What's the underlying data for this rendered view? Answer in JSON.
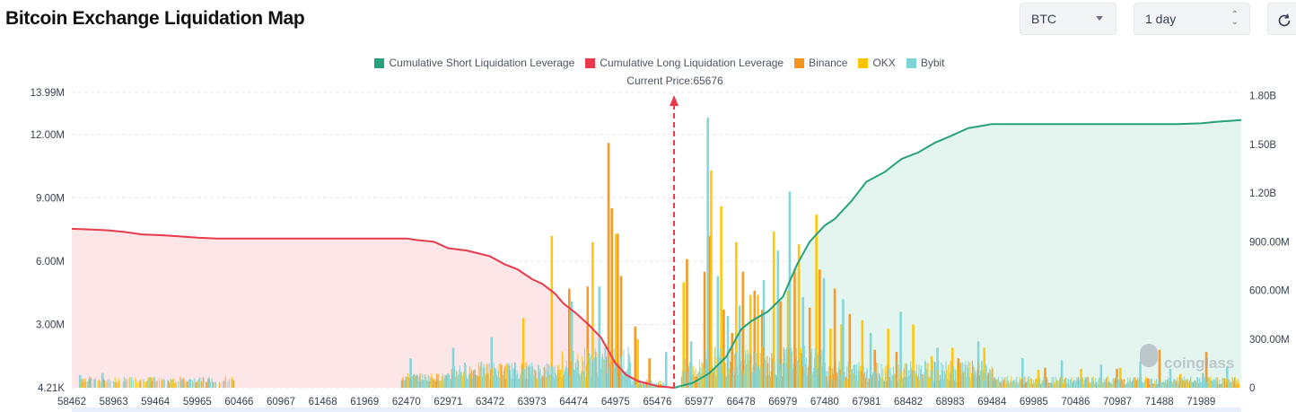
{
  "header": {
    "title": "Bitcoin Exchange Liquidation Map",
    "coin_select": "BTC",
    "range_select": "1 day"
  },
  "legend": [
    {
      "label": "Cumulative Short Liquidation Leverage",
      "color": "#26a17b"
    },
    {
      "label": "Cumulative Long Liquidation Leverage",
      "color": "#e83a4a"
    },
    {
      "label": "Binance",
      "color": "#f7931a"
    },
    {
      "label": "OKX",
      "color": "#ffc400"
    },
    {
      "label": "Bybit",
      "color": "#7ed4d6"
    }
  ],
  "current_price_label": "Current Price:65676",
  "watermark": "coinglass",
  "chart_data": {
    "type": "bar",
    "current_price": 65676,
    "x_range": [
      58462,
      72470
    ],
    "x_ticks": [
      "58462",
      "58963",
      "59464",
      "59965",
      "60466",
      "60967",
      "61468",
      "61969",
      "62470",
      "62971",
      "63472",
      "63973",
      "64474",
      "64975",
      "65476",
      "65977",
      "66478",
      "66979",
      "67480",
      "67981",
      "68482",
      "68983",
      "69484",
      "69985",
      "70486",
      "70987",
      "71488",
      "71989"
    ],
    "y_left_ticks": [
      "4.21K",
      "3.00M",
      "6.00M",
      "9.00M",
      "12.00M",
      "13.99M"
    ],
    "y_left_values": [
      4210,
      3000000,
      6000000,
      9000000,
      12000000,
      13990000
    ],
    "y_left_range": [
      4210,
      13990000
    ],
    "y_right_ticks": [
      "0",
      "300.00M",
      "600.00M",
      "900.00M",
      "1.20B",
      "1.50B",
      "1.80B"
    ],
    "y_right_values": [
      0,
      300000000,
      600000000,
      900000000,
      1200000000,
      1500000000,
      1800000000
    ],
    "y_right_range": [
      0,
      1820000000
    ],
    "cumulative_long": {
      "name": "Cumulative Long Liquidation Leverage",
      "x": [
        58462,
        58700,
        58900,
        59100,
        59300,
        59550,
        59700,
        59965,
        60200,
        60466,
        61000,
        61500,
        62000,
        62470,
        62600,
        62800,
        62971,
        63200,
        63472,
        63650,
        63800,
        63973,
        64100,
        64250,
        64350,
        64500,
        64650,
        64800,
        64975,
        65100,
        65250,
        65476,
        65676
      ],
      "y": [
        980000000,
        975000000,
        970000000,
        960000000,
        945000000,
        940000000,
        935000000,
        925000000,
        920000000,
        920000000,
        920000000,
        920000000,
        920000000,
        920000000,
        910000000,
        900000000,
        860000000,
        845000000,
        810000000,
        760000000,
        730000000,
        670000000,
        640000000,
        580000000,
        520000000,
        460000000,
        390000000,
        310000000,
        150000000,
        80000000,
        40000000,
        10000000,
        0
      ]
    },
    "cumulative_short": {
      "name": "Cumulative Short Liquidation Leverage",
      "x": [
        65676,
        65900,
        66100,
        66300,
        66478,
        66600,
        66800,
        66979,
        67150,
        67300,
        67480,
        67600,
        67800,
        67981,
        68200,
        68400,
        68600,
        68800,
        68983,
        69200,
        69484,
        70000,
        70500,
        71000,
        71488,
        71700,
        71989,
        72200,
        72470
      ],
      "y": [
        0,
        30000000,
        90000000,
        190000000,
        360000000,
        410000000,
        470000000,
        560000000,
        760000000,
        900000000,
        1000000000,
        1040000000,
        1150000000,
        1270000000,
        1330000000,
        1410000000,
        1450000000,
        1510000000,
        1550000000,
        1600000000,
        1625000000,
        1625000000,
        1625000000,
        1625000000,
        1625000000,
        1625000000,
        1630000000,
        1640000000,
        1650000000
      ]
    },
    "bars": {
      "note": "individual liquidation leverage by price level (left axis)",
      "series": [
        {
          "name": "Binance",
          "x": [
            64420,
            64640,
            64890,
            64930,
            65000,
            65040,
            65210,
            65380,
            65830,
            66040,
            66100,
            66270,
            66370,
            66500,
            66640,
            66730,
            66950,
            67120,
            67300,
            67420,
            67600,
            67780,
            68080,
            68340,
            69080,
            70120,
            70980,
            71490,
            72050
          ],
          "values": [
            4700000,
            4800000,
            11600000,
            8500000,
            7300000,
            5300000,
            2900000,
            1400000,
            6100000,
            5500000,
            7200000,
            3700000,
            2600000,
            5500000,
            4600000,
            3700000,
            4100000,
            5600000,
            3800000,
            5600000,
            4700000,
            3500000,
            1800000,
            1700000,
            1400000,
            950000,
            900000,
            1800000,
            1700000
          ]
        },
        {
          "name": "OKX",
          "x": [
            63870,
            64210,
            64700,
            64980,
            65240,
            65790,
            66120,
            66240,
            66420,
            66590,
            66680,
            66870,
            67040,
            67170,
            67380,
            67550,
            67680,
            67930,
            68240,
            68540,
            68760,
            69010,
            69390,
            70040,
            70550,
            71020,
            71740
          ],
          "values": [
            3300000,
            7200000,
            6900000,
            7300000,
            2300000,
            5000000,
            10300000,
            8600000,
            6900000,
            4400000,
            4400000,
            7400000,
            4600000,
            6800000,
            8200000,
            2800000,
            3000000,
            3200000,
            2800000,
            3000000,
            1500000,
            1900000,
            1900000,
            850000,
            900000,
            950000,
            650000
          ]
        },
        {
          "name": "Bybit",
          "x": [
            58560,
            58830,
            59400,
            60100,
            62520,
            63030,
            63490,
            64450,
            64780,
            65580,
            65880,
            66080,
            66200,
            66320,
            66460,
            66750,
            66920,
            67060,
            67220,
            67470,
            67700,
            68030,
            68390,
            68830,
            69320,
            69850,
            70320,
            70790,
            71260,
            71620,
            72010,
            72300
          ],
          "values": [
            600000,
            700000,
            500000,
            450000,
            1400000,
            1900000,
            2400000,
            4100000,
            4800000,
            1700000,
            2200000,
            12800000,
            5300000,
            3400000,
            3900000,
            5100000,
            6500000,
            9300000,
            4300000,
            5200000,
            4200000,
            2600000,
            3600000,
            1900000,
            2200000,
            1400000,
            1300000,
            1100000,
            1250000,
            900000,
            700000,
            1000000
          ]
        }
      ]
    }
  }
}
